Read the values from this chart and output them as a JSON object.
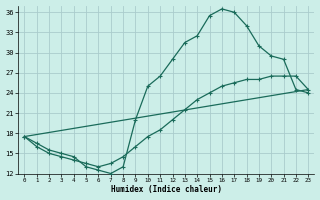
{
  "xlabel": "Humidex (Indice chaleur)",
  "bg_color": "#cceee8",
  "grid_color": "#aacccc",
  "line_color": "#1a6b5a",
  "xlim": [
    -0.5,
    23.5
  ],
  "ylim": [
    12,
    37
  ],
  "xticks": [
    0,
    1,
    2,
    3,
    4,
    5,
    6,
    7,
    8,
    9,
    10,
    11,
    12,
    13,
    14,
    15,
    16,
    17,
    18,
    19,
    20,
    21,
    22,
    23
  ],
  "yticks": [
    12,
    15,
    18,
    21,
    24,
    27,
    30,
    33,
    36
  ],
  "line1_x": [
    0,
    1,
    2,
    3,
    4,
    5,
    6,
    7,
    8,
    9,
    10,
    11,
    12,
    13,
    14,
    15,
    16,
    17,
    18,
    19,
    20,
    21,
    22,
    23
  ],
  "line1_y": [
    17.5,
    16.5,
    15.5,
    15.0,
    14.5,
    13.0,
    12.5,
    12.0,
    13.0,
    20.0,
    25.0,
    26.5,
    29.0,
    31.5,
    32.5,
    35.5,
    36.5,
    36.0,
    34.0,
    31.0,
    29.5,
    29.0,
    24.5,
    24.0
  ],
  "line2_x": [
    0,
    1,
    2,
    3,
    4,
    5,
    6,
    7,
    8,
    9,
    10,
    11,
    12,
    13,
    14,
    15,
    16,
    17,
    18,
    19,
    20,
    21,
    22,
    23
  ],
  "line2_y": [
    17.5,
    16.0,
    15.0,
    14.5,
    14.0,
    13.5,
    13.0,
    13.5,
    14.5,
    16.0,
    17.5,
    18.5,
    20.0,
    21.5,
    23.0,
    24.0,
    25.0,
    25.5,
    26.0,
    26.0,
    26.5,
    26.5,
    26.5,
    24.5
  ],
  "line3_x": [
    0,
    23
  ],
  "line3_y": [
    17.5,
    24.5
  ]
}
